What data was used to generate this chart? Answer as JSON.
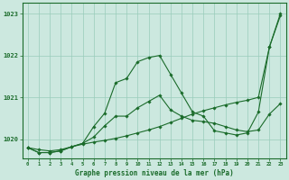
{
  "x": [
    0,
    1,
    2,
    3,
    4,
    5,
    6,
    7,
    8,
    9,
    10,
    11,
    12,
    13,
    14,
    15,
    16,
    17,
    18,
    19,
    20,
    21,
    22,
    23
  ],
  "line1": [
    1019.8,
    1019.75,
    1019.72,
    1019.75,
    1019.82,
    1019.88,
    1019.93,
    1019.97,
    1020.02,
    1020.08,
    1020.15,
    1020.22,
    1020.3,
    1020.4,
    1020.5,
    1020.6,
    1020.68,
    1020.75,
    1020.82,
    1020.88,
    1020.93,
    1021.0,
    1022.2,
    1023.0
  ],
  "line2": [
    1019.8,
    1019.68,
    1019.68,
    1019.72,
    1019.82,
    1019.9,
    1020.3,
    1020.62,
    1021.35,
    1021.45,
    1021.85,
    1021.95,
    1022.0,
    1021.55,
    1021.1,
    1020.65,
    1020.55,
    1020.2,
    1020.15,
    1020.1,
    1020.15,
    1020.65,
    1022.2,
    1022.95
  ],
  "line3": [
    1019.8,
    1019.68,
    1019.68,
    1019.72,
    1019.82,
    1019.9,
    1020.05,
    1020.32,
    1020.55,
    1020.55,
    1020.75,
    1020.9,
    1021.05,
    1020.7,
    1020.55,
    1020.45,
    1020.42,
    1020.38,
    1020.3,
    1020.22,
    1020.18,
    1020.22,
    1020.6,
    1020.85
  ],
  "bg_color": "#cce8df",
  "grid_color": "#99ccbb",
  "line_color": "#1a6b2a",
  "xlabel": "Graphe pression niveau de la mer (hPa)",
  "ylim_min": 1019.55,
  "ylim_max": 1023.25,
  "yticks": [
    1020,
    1021,
    1022,
    1023
  ],
  "xlim_min": -0.5,
  "xlim_max": 23.5
}
